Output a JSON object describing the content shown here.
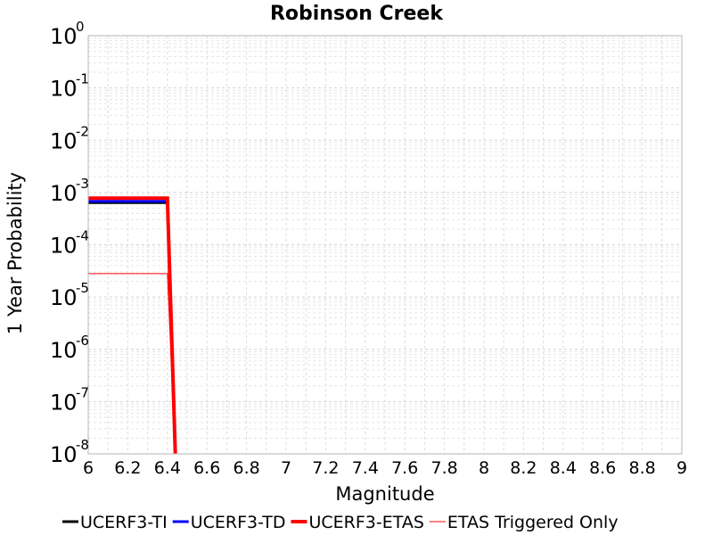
{
  "chart_data": {
    "type": "line",
    "title": "Robinson Creek",
    "xlabel": "Magnitude",
    "ylabel": "1 Year Probability",
    "xlim": [
      6,
      9
    ],
    "ylim": [
      1e-08,
      1
    ],
    "yscale": "log",
    "grid": true,
    "legend_position": "bottom",
    "x_ticks": [
      "6",
      "6.2",
      "6.4",
      "6.6",
      "6.8",
      "7",
      "7.2",
      "7.4",
      "7.6",
      "7.8",
      "8",
      "8.2",
      "8.4",
      "8.6",
      "8.8",
      "9"
    ],
    "y_ticks": [
      {
        "base": "10",
        "exp": "0"
      },
      {
        "base": "10",
        "exp": "-1"
      },
      {
        "base": "10",
        "exp": "-2"
      },
      {
        "base": "10",
        "exp": "-3"
      },
      {
        "base": "10",
        "exp": "-4"
      },
      {
        "base": "10",
        "exp": "-5"
      },
      {
        "base": "10",
        "exp": "-6"
      },
      {
        "base": "10",
        "exp": "-7"
      },
      {
        "base": "10",
        "exp": "-8"
      }
    ],
    "series": [
      {
        "name": "UCERF3-TI",
        "color": "#000000",
        "width": 3,
        "x": [
          6.0,
          6.4,
          6.44
        ],
        "y": [
          0.00064,
          0.00064,
          1e-08
        ]
      },
      {
        "name": "UCERF3-TD",
        "color": "#0000ff",
        "width": 3,
        "x": [
          6.0,
          6.4,
          6.44
        ],
        "y": [
          0.00068,
          0.00068,
          1e-08
        ]
      },
      {
        "name": "UCERF3-ETAS",
        "color": "#ff0000",
        "width": 4,
        "x": [
          6.0,
          6.4,
          6.44
        ],
        "y": [
          0.00078,
          0.00078,
          1e-08
        ]
      },
      {
        "name": "ETAS Triggered Only",
        "color": "#ff0000",
        "width": 1,
        "x": [
          6.0,
          6.4,
          6.44
        ],
        "y": [
          2.8e-05,
          2.8e-05,
          1e-08
        ]
      }
    ]
  }
}
